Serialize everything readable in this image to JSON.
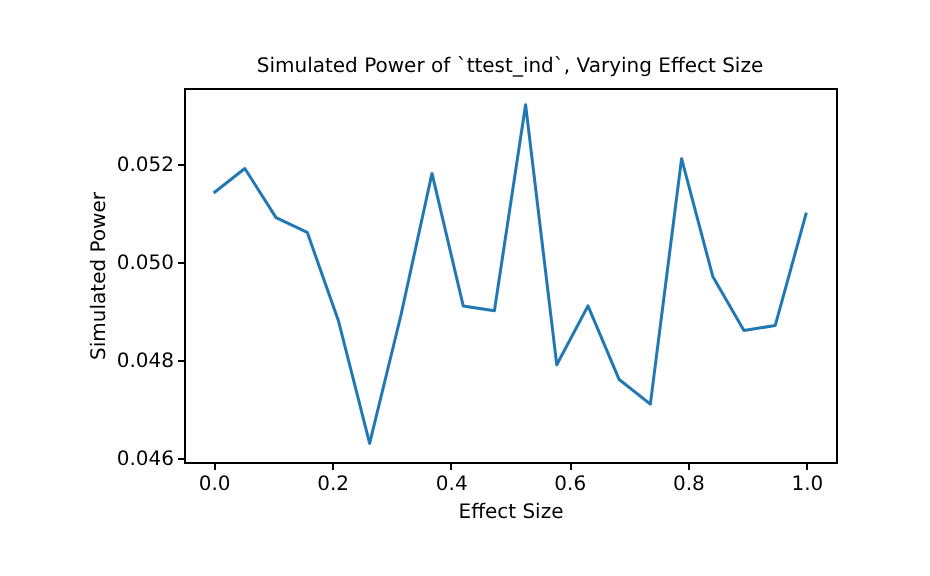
{
  "chart_data": {
    "type": "line",
    "title": "Simulated Power of `ttest_ind`, Varying Effect Size",
    "xlabel": "Effect Size",
    "ylabel": "Simulated Power",
    "x": [
      0,
      0.0526,
      0.1053,
      0.1579,
      0.2105,
      0.2632,
      0.3158,
      0.3684,
      0.4211,
      0.4737,
      0.5263,
      0.5789,
      0.6316,
      0.6842,
      0.7368,
      0.7895,
      0.8421,
      0.8947,
      0.9474,
      1
    ],
    "series": [
      {
        "color": "#1f77b4",
        "values": [
          0.0514,
          0.0519,
          0.0509,
          0.0506,
          0.0488,
          0.0463,
          0.0489,
          0.0518,
          0.0491,
          0.049,
          0.0532,
          0.0479,
          0.0491,
          0.0476,
          0.0471,
          0.0521,
          0.0497,
          0.0486,
          0.0487,
          0.051
        ]
      }
    ],
    "xlim": [
      -0.05,
      1.05
    ],
    "ylim": [
      0.04592,
      0.05354
    ],
    "xticks": [
      {
        "value": 0,
        "label": "0.0"
      },
      {
        "value": 0.2,
        "label": "0.2"
      },
      {
        "value": 0.4,
        "label": "0.4"
      },
      {
        "value": 0.6,
        "label": "0.6"
      },
      {
        "value": 0.8,
        "label": "0.8"
      },
      {
        "value": 1,
        "label": "1.0"
      }
    ],
    "yticks": [
      0.046,
      0.048,
      {
        "value": 0.05,
        "label": "0.050"
      },
      0.052
    ],
    "grid": false,
    "marker": "none",
    "line_style": "solid"
  }
}
